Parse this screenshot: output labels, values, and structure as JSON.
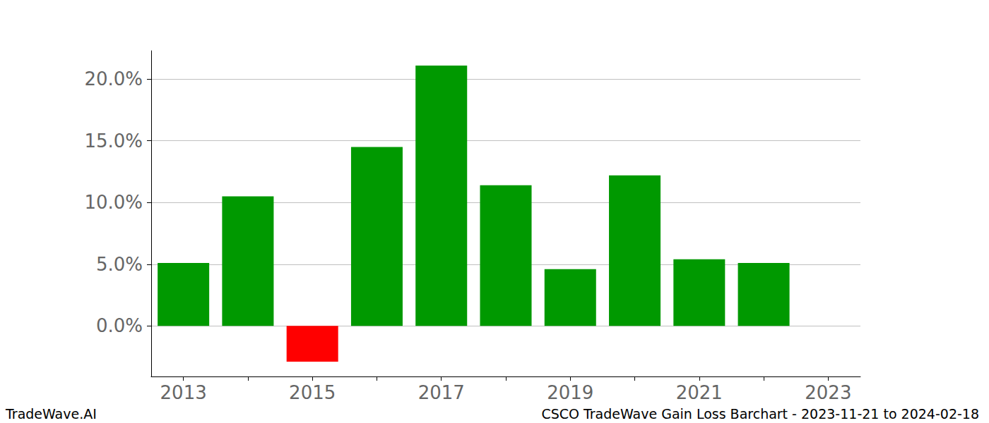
{
  "chart_data": {
    "type": "bar",
    "categories": [
      "2013",
      null,
      "2015",
      null,
      "2017",
      null,
      "2019",
      null,
      "2021",
      null,
      "2023"
    ],
    "values": [
      5.1,
      10.5,
      -2.9,
      14.5,
      21.1,
      11.4,
      4.6,
      12.2,
      5.4,
      5.1,
      null
    ],
    "colors": [
      "#009900",
      "#009900",
      "#ff0000",
      "#009900",
      "#009900",
      "#009900",
      "#009900",
      "#009900",
      "#009900",
      "#009900",
      "#009900"
    ],
    "ylim": [
      -4.1,
      22.3
    ],
    "yticks": [
      {
        "value": 0,
        "label": "0.0%"
      },
      {
        "value": 5,
        "label": "5.0%"
      },
      {
        "value": 10,
        "label": "10.0%"
      },
      {
        "value": 15,
        "label": "15.0%"
      },
      {
        "value": 20,
        "label": "20.0%"
      }
    ],
    "grid": true,
    "annotations": [
      "TradeWave.AI",
      "CSCO TradeWave Gain Loss Barchart - 2023-11-21 to 2024-02-18"
    ]
  }
}
